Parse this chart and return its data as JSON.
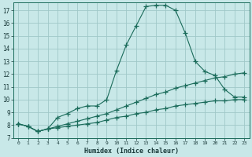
{
  "xlabel": "Humidex (Indice chaleur)",
  "bg_color": "#c8e8e8",
  "grid_color": "#a0c8c8",
  "line_color": "#1a6b5a",
  "xlim": [
    -0.5,
    23.5
  ],
  "ylim": [
    7,
    17.6
  ],
  "yticks": [
    7,
    8,
    9,
    10,
    11,
    12,
    13,
    14,
    15,
    16,
    17
  ],
  "xticks": [
    0,
    1,
    2,
    3,
    4,
    5,
    6,
    7,
    8,
    9,
    10,
    11,
    12,
    13,
    14,
    15,
    16,
    17,
    18,
    19,
    20,
    21,
    22,
    23
  ],
  "line1_x": [
    0,
    1,
    2,
    3,
    4,
    5,
    6,
    7,
    8,
    9,
    10,
    11,
    12,
    13,
    14,
    15,
    16,
    17,
    18,
    19,
    20,
    21,
    22,
    23
  ],
  "line1_y": [
    8.1,
    7.9,
    7.5,
    7.7,
    8.6,
    8.9,
    9.3,
    9.5,
    9.5,
    10.0,
    12.3,
    14.3,
    15.8,
    17.3,
    17.4,
    17.4,
    17.0,
    15.2,
    13.0,
    12.2,
    11.9,
    10.8,
    10.2,
    10.2
  ],
  "line2_x": [
    0,
    1,
    2,
    3,
    4,
    5,
    6,
    7,
    8,
    9,
    10,
    11,
    12,
    13,
    14,
    15,
    16,
    17,
    18,
    19,
    20,
    21,
    22,
    23
  ],
  "line2_y": [
    8.1,
    7.9,
    7.5,
    7.7,
    7.9,
    8.1,
    8.3,
    8.5,
    8.7,
    8.9,
    9.2,
    9.5,
    9.8,
    10.1,
    10.4,
    10.6,
    10.9,
    11.1,
    11.3,
    11.5,
    11.7,
    11.8,
    12.0,
    12.1
  ],
  "line3_x": [
    0,
    1,
    2,
    3,
    4,
    5,
    6,
    7,
    8,
    9,
    10,
    11,
    12,
    13,
    14,
    15,
    16,
    17,
    18,
    19,
    20,
    21,
    22,
    23
  ],
  "line3_y": [
    8.1,
    7.9,
    7.5,
    7.7,
    7.8,
    7.9,
    8.0,
    8.1,
    8.2,
    8.4,
    8.6,
    8.7,
    8.9,
    9.0,
    9.2,
    9.3,
    9.5,
    9.6,
    9.7,
    9.8,
    9.9,
    9.9,
    10.0,
    10.0
  ]
}
